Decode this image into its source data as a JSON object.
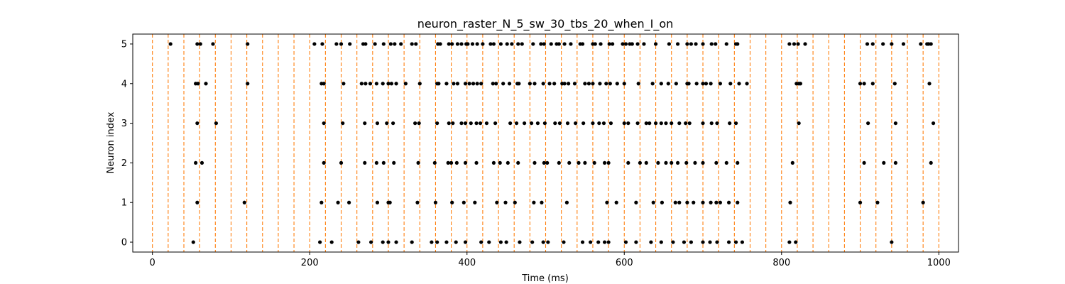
{
  "chart_data": {
    "type": "scatter",
    "title": "neuron_raster_N_5_sw_30_tbs_20_when_I_on",
    "xlabel": "Time (ms)",
    "ylabel": "Neuron index",
    "xlim": [
      -25,
      1025
    ],
    "ylim": [
      -0.25,
      5.25
    ],
    "xticks": [
      0,
      200,
      400,
      600,
      800,
      1000
    ],
    "yticks": [
      0,
      1,
      2,
      3,
      4,
      5
    ],
    "grid": false,
    "marker_color": "#000000",
    "vline_color": "#ff7f0e",
    "vline_style": "dashed",
    "vlines": [
      0,
      20,
      40,
      60,
      80,
      100,
      120,
      140,
      160,
      180,
      200,
      220,
      240,
      260,
      280,
      300,
      320,
      340,
      360,
      380,
      400,
      420,
      440,
      460,
      480,
      500,
      520,
      540,
      560,
      580,
      600,
      620,
      640,
      660,
      680,
      700,
      720,
      740,
      760,
      780,
      800,
      820,
      840,
      860,
      880,
      900,
      920,
      940,
      960,
      980,
      1000
    ],
    "spikes": [
      {
        "neuron": 0,
        "times": [
          52,
          213,
          228,
          262,
          278,
          293,
          300,
          310,
          330,
          355,
          362,
          374,
          386,
          398,
          418,
          428,
          443,
          450,
          467,
          483,
          497,
          503,
          523,
          547,
          557,
          567,
          575,
          580,
          602,
          615,
          634,
          647,
          662,
          676,
          685,
          700,
          709,
          718,
          733,
          742,
          750,
          810,
          818,
          940
        ]
      },
      {
        "neuron": 1,
        "times": [
          57,
          117,
          215,
          236,
          250,
          286,
          300,
          302,
          337,
          360,
          381,
          396,
          410,
          438,
          449,
          461,
          485,
          495,
          527,
          578,
          590,
          615,
          637,
          648,
          665,
          670,
          680,
          688,
          700,
          710,
          717,
          722,
          733,
          744,
          811,
          900,
          922,
          980
        ]
      },
      {
        "neuron": 2,
        "times": [
          55,
          63,
          218,
          240,
          270,
          285,
          294,
          307,
          338,
          359,
          376,
          380,
          387,
          398,
          412,
          434,
          442,
          452,
          465,
          486,
          498,
          502,
          517,
          530,
          542,
          550,
          562,
          575,
          580,
          605,
          620,
          628,
          643,
          653,
          660,
          668,
          679,
          690,
          700,
          717,
          730,
          744,
          814,
          905,
          930,
          945,
          990
        ]
      },
      {
        "neuron": 3,
        "times": [
          57,
          81,
          218,
          242,
          270,
          286,
          298,
          306,
          334,
          339,
          362,
          377,
          382,
          393,
          398,
          405,
          412,
          417,
          425,
          436,
          455,
          463,
          473,
          482,
          490,
          499,
          512,
          518,
          528,
          538,
          548,
          560,
          568,
          574,
          583,
          600,
          605,
          617,
          628,
          632,
          640,
          647,
          653,
          660,
          670,
          678,
          683,
          700,
          711,
          718,
          734,
          742,
          822,
          910,
          945,
          993
        ]
      },
      {
        "neuron": 4,
        "times": [
          55,
          58,
          68,
          121,
          215,
          218,
          243,
          266,
          271,
          277,
          285,
          293,
          300,
          304,
          310,
          322,
          340,
          362,
          364,
          374,
          383,
          388,
          398,
          403,
          408,
          413,
          418,
          433,
          437,
          446,
          454,
          464,
          466,
          480,
          486,
          497,
          505,
          511,
          521,
          524,
          529,
          537,
          550,
          555,
          560,
          569,
          577,
          582,
          591,
          600,
          618,
          636,
          647,
          656,
          666,
          680,
          682,
          692,
          700,
          704,
          710,
          722,
          735,
          746,
          756,
          819,
          822,
          824,
          900,
          905,
          916,
          944,
          988
        ]
      },
      {
        "neuron": 5,
        "times": [
          23,
          57,
          61,
          77,
          121,
          206,
          216,
          234,
          240,
          251,
          268,
          271,
          283,
          294,
          303,
          308,
          316,
          330,
          335,
          363,
          366,
          377,
          381,
          388,
          393,
          399,
          401,
          407,
          413,
          420,
          430,
          434,
          443,
          451,
          457,
          465,
          470,
          484,
          494,
          498,
          507,
          514,
          517,
          524,
          532,
          544,
          547,
          560,
          563,
          570,
          581,
          585,
          598,
          602,
          607,
          610,
          617,
          625,
          640,
          657,
          668,
          680,
          685,
          691,
          700,
          711,
          716,
          730,
          742,
          744,
          810,
          816,
          821,
          830,
          909,
          916,
          929,
          940,
          955,
          977,
          985,
          987,
          990
        ]
      }
    ]
  }
}
